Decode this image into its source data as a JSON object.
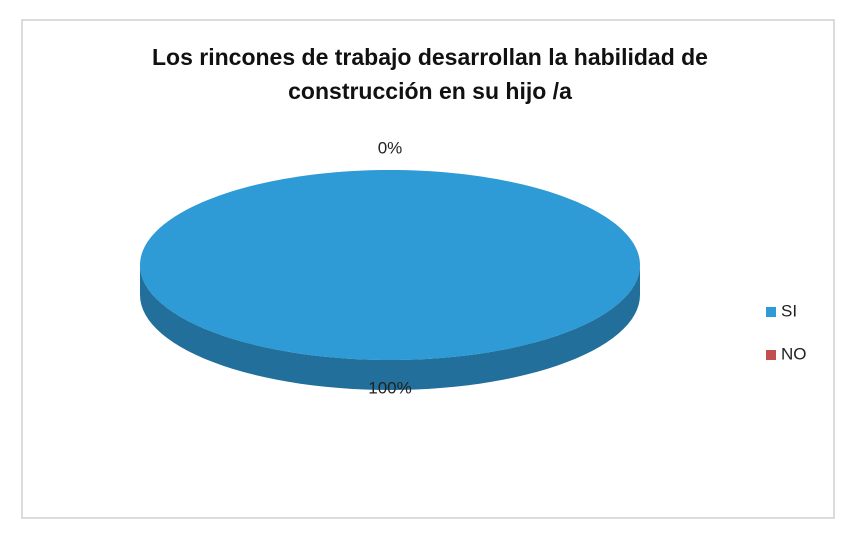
{
  "chart_data": {
    "type": "pie",
    "title": "Los rincones de trabajo desarrollan la habilidad de construcción en su hijo /a",
    "categories": [
      "SI",
      "NO"
    ],
    "values": [
      100,
      0
    ],
    "value_labels": [
      "100%",
      "0%"
    ],
    "colors": [
      "#2e9ad6",
      "#c0504d"
    ],
    "legend": "right"
  }
}
